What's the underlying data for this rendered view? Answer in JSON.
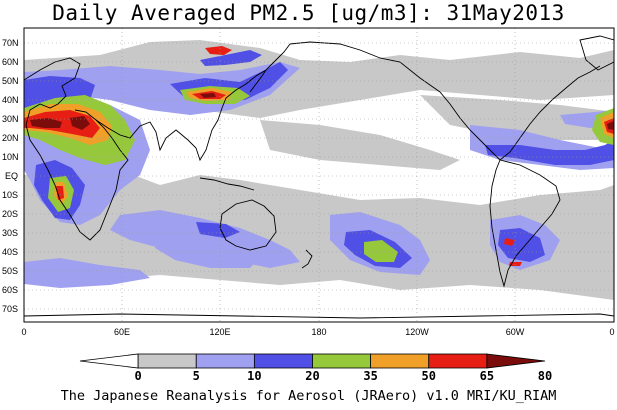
{
  "title": "Daily Averaged PM2.5 [ug/m3]: 31May2013",
  "footer": "The Japanese Reanalysis for Aerosol (JRAero) v1.0 MRI/KU_RIAM",
  "map": {
    "lat_labels": [
      "70N",
      "60N",
      "50N",
      "40N",
      "30N",
      "20N",
      "10N",
      "EQ",
      "10S",
      "20S",
      "30S",
      "40S",
      "50S",
      "60S",
      "70S"
    ],
    "lon_labels": [
      "0",
      "60E",
      "120E",
      "180",
      "120W",
      "60W",
      "0"
    ]
  },
  "colorbar": {
    "levels": [
      "0",
      "5",
      "10",
      "20",
      "35",
      "50",
      "65",
      "80"
    ],
    "colors": [
      "#ffffff",
      "#c8c8c8",
      "#a0a0f0",
      "#5050e6",
      "#96c83c",
      "#f0a028",
      "#e61e14",
      "#7a0c0c"
    ]
  }
}
